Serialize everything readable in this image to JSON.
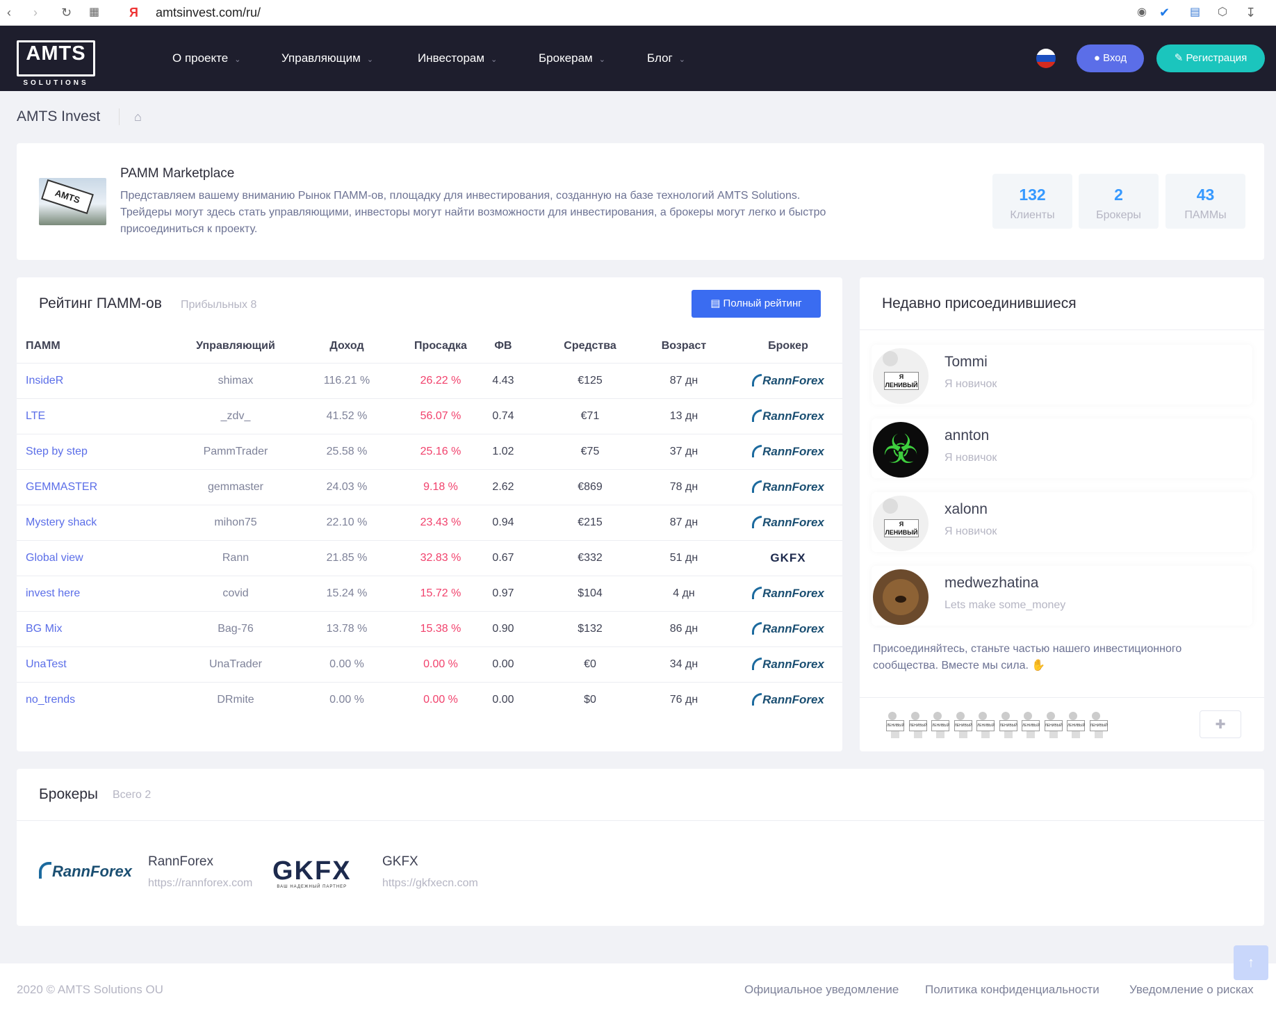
{
  "browser": {
    "url": "amtsinvest.com/ru/"
  },
  "brand": {
    "logo_main": "AMTS",
    "logo_sub": "SOLUTIONS"
  },
  "nav": {
    "items": [
      {
        "label": "О проекте"
      },
      {
        "label": "Управляющим"
      },
      {
        "label": "Инвесторам"
      },
      {
        "label": "Брокерам"
      },
      {
        "label": "Блог"
      }
    ],
    "login": "Вход",
    "register": "Регистрация"
  },
  "breadcrumb": {
    "title": "AMTS Invest"
  },
  "promo": {
    "title": "PAMM Marketplace",
    "text_line1": "Представляем вашему вниманию Рынок ПАММ-ов, площадку для инвестирования, созданную на базе технологий AMTS Solutions.",
    "text_line2": "Трейдеры могут здесь стать управляющими, инвесторы могут найти возможности для инвестирования, а брокеры могут легко и быстро",
    "text_line3": "присоединиться к проекту.",
    "image_sign": "AMTS",
    "stats": [
      {
        "value": "132",
        "caption": "Клиенты"
      },
      {
        "value": "2",
        "caption": "Брокеры"
      },
      {
        "value": "43",
        "caption": "ПАММы"
      }
    ]
  },
  "rating": {
    "title": "Рейтинг ПАММ-ов",
    "subtitle": "Прибыльных 8",
    "full_button": "Полный рейтинг",
    "columns": [
      "ПАММ",
      "Управляющий",
      "Доход",
      "Просадка",
      "ФВ",
      "Средства",
      "Возраст",
      "Брокер"
    ],
    "rows": [
      {
        "pamm": "InsideR",
        "manager": "shimax",
        "income": "116.21 %",
        "drawdown": "26.22 %",
        "fv": "4.43",
        "funds": "€125",
        "age": "87 дн",
        "broker": "RannForex"
      },
      {
        "pamm": "LTE",
        "manager": "_zdv_",
        "income": "41.52 %",
        "drawdown": "56.07 %",
        "fv": "0.74",
        "funds": "€71",
        "age": "13 дн",
        "broker": "RannForex"
      },
      {
        "pamm": "Step by step",
        "manager": "PammTrader",
        "income": "25.58 %",
        "drawdown": "25.16 %",
        "fv": "1.02",
        "funds": "€75",
        "age": "37 дн",
        "broker": "RannForex"
      },
      {
        "pamm": "GEMMASTER",
        "manager": "gemmaster",
        "income": "24.03 %",
        "drawdown": "9.18 %",
        "fv": "2.62",
        "funds": "€869",
        "age": "78 дн",
        "broker": "RannForex"
      },
      {
        "pamm": "Mystery shack",
        "manager": "mihon75",
        "income": "22.10 %",
        "drawdown": "23.43 %",
        "fv": "0.94",
        "funds": "€215",
        "age": "87 дн",
        "broker": "RannForex"
      },
      {
        "pamm": "Global view",
        "manager": "Rann",
        "income": "21.85 %",
        "drawdown": "32.83 %",
        "fv": "0.67",
        "funds": "€332",
        "age": "51 дн",
        "broker": "GKFX"
      },
      {
        "pamm": "invest here",
        "manager": "covid",
        "income": "15.24 %",
        "drawdown": "15.72 %",
        "fv": "0.97",
        "funds": "$104",
        "age": "4 дн",
        "broker": "RannForex"
      },
      {
        "pamm": "BG Mix",
        "manager": "Bag-76",
        "income": "13.78 %",
        "drawdown": "15.38 %",
        "fv": "0.90",
        "funds": "$132",
        "age": "86 дн",
        "broker": "RannForex"
      },
      {
        "pamm": "UnaTest",
        "manager": "UnaTrader",
        "income": "0.00 %",
        "drawdown": "0.00 %",
        "fv": "0.00",
        "funds": "€0",
        "age": "34 дн",
        "broker": "RannForex"
      },
      {
        "pamm": "no_trends",
        "manager": "DRmite",
        "income": "0.00 %",
        "drawdown": "0.00 %",
        "fv": "0.00",
        "funds": "$0",
        "age": "76 дн",
        "broker": "RannForex"
      }
    ]
  },
  "joined": {
    "title": "Недавно присоединившиеся",
    "members": [
      {
        "name": "Tommi",
        "status": "Я новичок",
        "avatar": "lazy",
        "avatar_text": "Я ЛЕНИВЫЙ"
      },
      {
        "name": "annton",
        "status": "Я новичок",
        "avatar": "biohazard"
      },
      {
        "name": "xalonn",
        "status": "Я новичок",
        "avatar": "lazy",
        "avatar_text": "Я ЛЕНИВЫЙ"
      },
      {
        "name": "medwezhatina",
        "status": "Lets make some_money",
        "avatar": "bear"
      }
    ],
    "invite_line1": "Присоединяйтесь, станьте частью нашего инвестиционного",
    "invite_line2": "сообщества. Вместе мы сила.",
    "mini_avatar_text": "ЛЕНИВЫЙ",
    "mini_count": 10
  },
  "brokers": {
    "title": "Брокеры",
    "subtitle": "Всего 2",
    "items": [
      {
        "name": "RannForex",
        "url": "https://rannforex.com",
        "logo": "RannForex"
      },
      {
        "name": "GKFX",
        "url": "https://gkfxecn.com",
        "logo": "GKFX",
        "logo_tag": "ВАШ НАДЕЖНЫЙ ПАРТНЕР"
      }
    ]
  },
  "footer": {
    "copyright": "2020 © AMTS Solutions OU",
    "links": [
      "Официальное уведомление",
      "Политика конфиденциальности",
      "Уведомление о рисках"
    ]
  },
  "colors": {
    "navbar": "#1e1e2d",
    "primary": "#5b6ee8",
    "success": "#1bc5bd",
    "danger": "#f1416c",
    "link": "#3699ff"
  }
}
